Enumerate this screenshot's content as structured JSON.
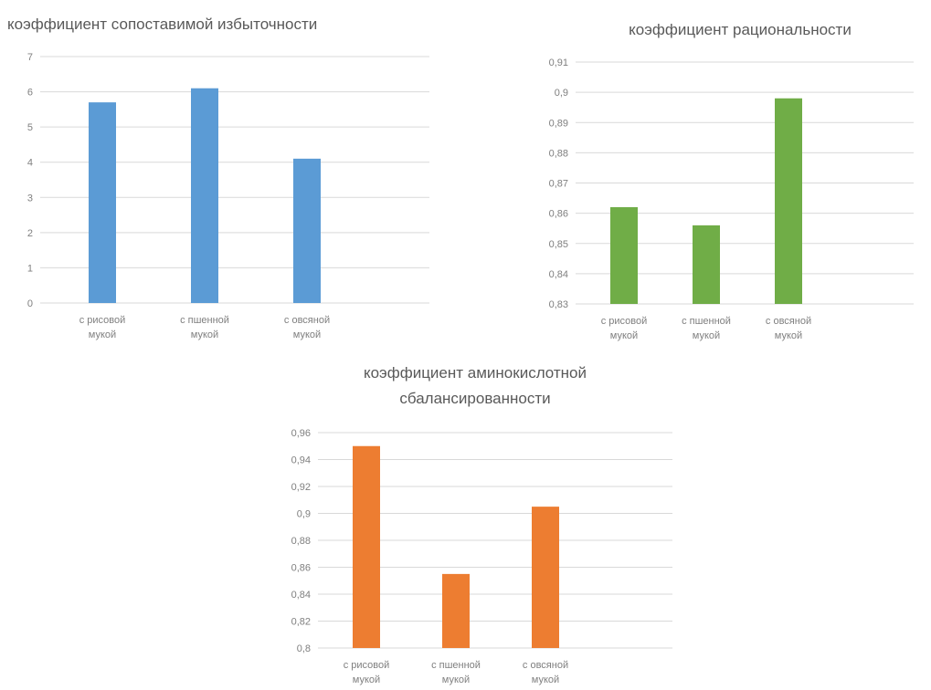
{
  "chart_data": [
    {
      "type": "bar",
      "title": "коэффициент сопоставимой избыточности",
      "categories": [
        "с рисовой мукой",
        "с пшенной мукой",
        "с овсяной мукой"
      ],
      "values": [
        5.7,
        6.1,
        4.1
      ],
      "ylim": [
        0,
        7
      ],
      "yticks": [
        "0",
        "1",
        "2",
        "3",
        "4",
        "5",
        "6",
        "7"
      ],
      "color": "#5b9bd5",
      "grid": true,
      "xlabel": "",
      "ylabel": ""
    },
    {
      "type": "bar",
      "title": "коэффициент рациональности",
      "categories": [
        "с рисовой мукой",
        "с пшенной мукой",
        "с овсяной мукой"
      ],
      "values": [
        0.862,
        0.856,
        0.898
      ],
      "ylim": [
        0.83,
        0.91
      ],
      "yticks": [
        "0,83",
        "0,84",
        "0,85",
        "0,86",
        "0,87",
        "0,88",
        "0,89",
        "0,9",
        "0,91"
      ],
      "color": "#70ad47",
      "grid": true,
      "xlabel": "",
      "ylabel": ""
    },
    {
      "type": "bar",
      "title": "коэффициент аминокислотной сбалансированности",
      "title_lines": [
        "коэффициент аминокислотной",
        "сбалансированности"
      ],
      "categories": [
        "с рисовой мукой",
        "с пшенной мукой",
        "с овсяной мукой"
      ],
      "values": [
        0.95,
        0.855,
        0.905
      ],
      "ylim": [
        0.8,
        0.96
      ],
      "yticks": [
        "0,8",
        "0,82",
        "0,84",
        "0,86",
        "0,88",
        "0,9",
        "0,92",
        "0,94",
        "0,96"
      ],
      "color": "#ed7d31",
      "grid": true,
      "xlabel": "",
      "ylabel": ""
    }
  ]
}
